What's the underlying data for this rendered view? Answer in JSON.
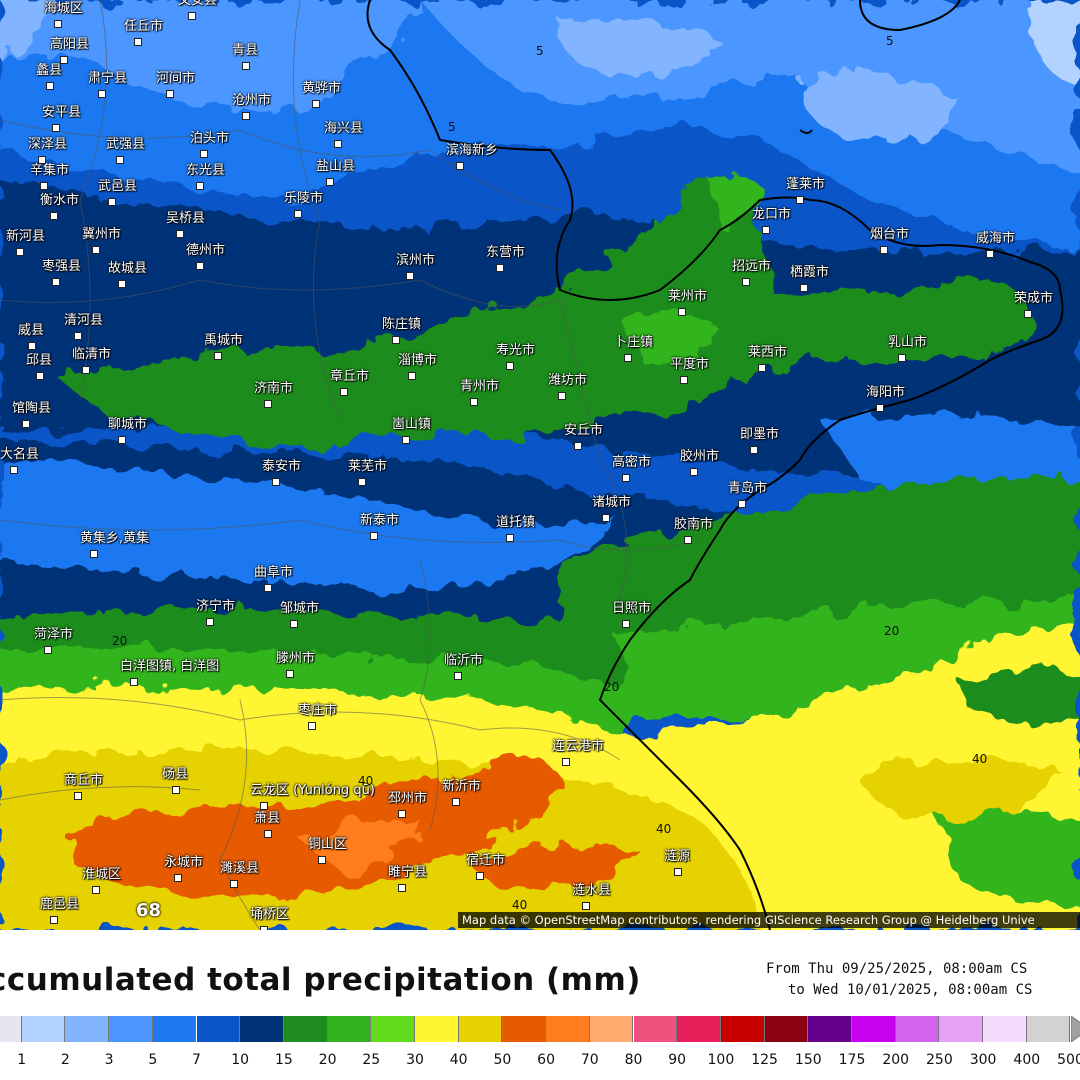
{
  "title": "ccumulated total precipitation (mm)",
  "period": {
    "from": "From Thu 09/25/2025, 08:00am CS",
    "to": "to Wed 10/01/2025, 08:00am CS"
  },
  "attribution": "Map data © OpenStreetMap contributors, rendering GIScience Research Group @ Heidelberg Unive",
  "max_value": "68",
  "legend": {
    "colors": [
      "#e6e6f2",
      "#b4d2ff",
      "#82b4ff",
      "#4b96ff",
      "#1e78f0",
      "#0a55c8",
      "#003278",
      "#1e8c1e",
      "#32b41e",
      "#64dc1e",
      "#fff532",
      "#e6d200",
      "#e65a00",
      "#ff7d1e",
      "#ffaa6e",
      "#f0507d",
      "#e61e5a",
      "#c80000",
      "#8c0014",
      "#64008c",
      "#c800f0",
      "#d264f0",
      "#e6a0f5",
      "#f5dcff",
      "#d2d2d2"
    ],
    "labels": [
      "1",
      "2",
      "3",
      "5",
      "7",
      "10",
      "15",
      "20",
      "25",
      "30",
      "40",
      "50",
      "60",
      "70",
      "80",
      "90",
      "100",
      "125",
      "150",
      "175",
      "200",
      "250",
      "300",
      "400",
      "500"
    ]
  },
  "contours": [
    "5",
    "5",
    "5",
    "20",
    "20",
    "20",
    "40",
    "40",
    "40",
    "40"
  ],
  "cities": [
    "海城区",
    "文安县",
    "任丘市",
    "高阳县",
    "青县",
    "蠡县",
    "肃宁县",
    "河间市",
    "黄骅市",
    "安平县",
    "沧州市",
    "海兴县",
    "深泽县",
    "武强县",
    "泊头市",
    "滨海新乡",
    "辛集市",
    "东光县",
    "盐山县",
    "武邑县",
    "衡水市",
    "吴桥县",
    "乐陵市",
    "冀州市",
    "新河县",
    "德州市",
    "枣强县",
    "故城县",
    "滨州市",
    "东营市",
    "蓬莱市",
    "龙口市",
    "烟台市",
    "威海市",
    "招远市",
    "栖霞市",
    "莱州市",
    "荣成市",
    "威县",
    "清河县",
    "陈庄镇",
    "邱县",
    "临清市",
    "禹城市",
    "寿光市",
    "卜庄镇",
    "乳山市",
    "莱西市",
    "淄博市",
    "章丘市",
    "平度市",
    "潍坊市",
    "济南市",
    "青州市",
    "海阳市",
    "馆陶县",
    "聊城市",
    "安丘市",
    "即墨市",
    "崮山镇",
    "大名县",
    "高密市",
    "胶州市",
    "泰安市",
    "莱芜市",
    "青岛市",
    "诸城市",
    "新泰市",
    "胶南市",
    "道托镇",
    "黄集乡,黄集",
    "曲阜市",
    "日照市",
    "济宁市",
    "邹城市",
    "菏泽市",
    "白洋图镇, 白洋图",
    "滕州市",
    "临沂市",
    "枣庄市",
    "砀县",
    "连云港市",
    "商丘市",
    "云龙区 (Yunlóng qū)",
    "新沂市",
    "萧县",
    "邳州市",
    "铜山区",
    "永城市",
    "睢宁县",
    "濉溪县",
    "宿迁市",
    "涟源",
    "淮城区",
    "涟水县",
    "埇桥区",
    "鹿邑县"
  ]
}
